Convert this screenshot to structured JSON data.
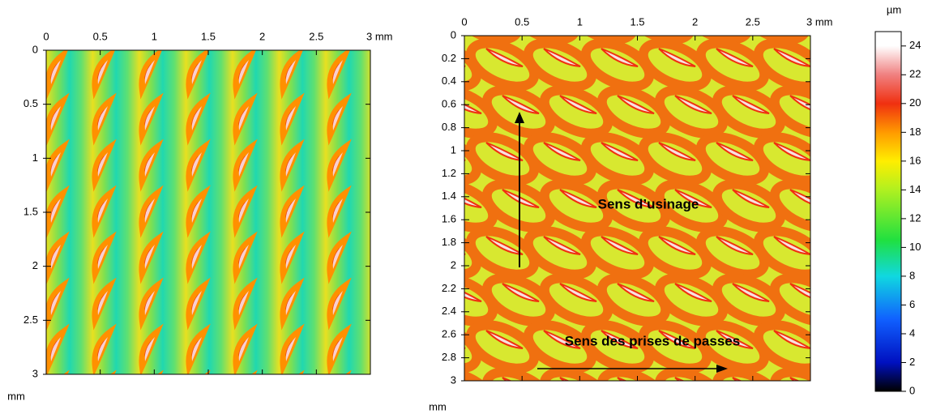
{
  "chart_data": [
    {
      "type": "heatmap",
      "xlim": [
        0,
        3
      ],
      "xticks": [
        0,
        0.5,
        1,
        1.5,
        2,
        2.5,
        {
          "value": 3,
          "label": "3 mm"
        }
      ],
      "ylim": [
        0,
        3
      ],
      "yticks": [
        0,
        0.5,
        1,
        1.5,
        2,
        2.5,
        3
      ],
      "y_unit": "mm"
    },
    {
      "type": "heatmap",
      "xlim": [
        0,
        3
      ],
      "xticks": [
        0,
        0.5,
        1,
        1.5,
        2,
        2.5,
        {
          "value": 3,
          "label": "3 mm"
        }
      ],
      "ylim": [
        0,
        3
      ],
      "yticks": [
        0,
        0.2,
        0.4,
        0.6,
        0.8,
        1,
        1.2,
        1.4,
        1.6,
        1.8,
        2,
        2.2,
        2.4,
        2.6,
        2.8,
        3
      ],
      "y_unit": "mm",
      "annotations": [
        "Sens d’usinage",
        "Sens des prises de passes"
      ]
    },
    {
      "type": "colorbar",
      "unit": "µm",
      "ylim": [
        0,
        25
      ],
      "yticks": [
        0,
        2,
        4,
        6,
        8,
        10,
        12,
        14,
        16,
        18,
        20,
        22,
        24
      ]
    }
  ]
}
